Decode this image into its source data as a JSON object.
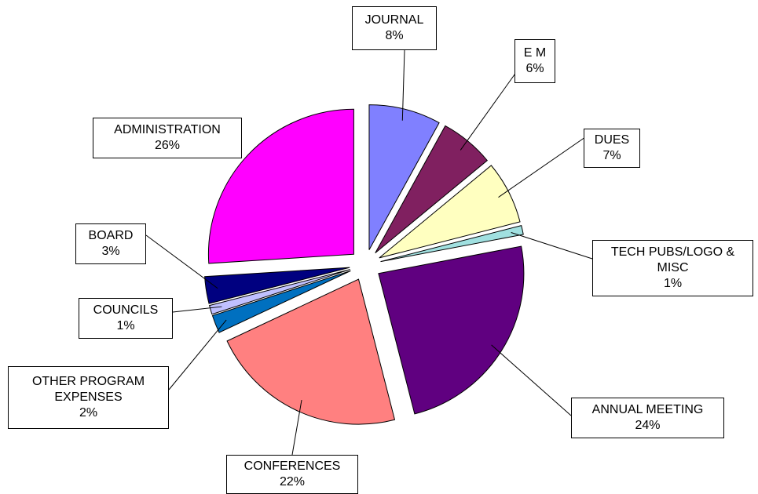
{
  "chart_data": {
    "type": "pie",
    "categories": [
      "JOURNAL",
      "E M",
      "DUES",
      "TECH PUBS/LOGO & MISC",
      "ANNUAL MEETING",
      "CONFERENCES",
      "OTHER PROGRAM EXPENSES",
      "COUNCILS",
      "BOARD",
      "ADMINISTRATION"
    ],
    "values": [
      8,
      6,
      7,
      1,
      24,
      22,
      2,
      1,
      3,
      26
    ],
    "value_labels": [
      "8%",
      "6%",
      "7%",
      "1%",
      "24%",
      "22%",
      "2%",
      "1%",
      "3%",
      "26%"
    ],
    "colors": [
      "#8080ff",
      "#802060",
      "#ffffc0",
      "#a0e0e0",
      "#600080",
      "#ff8080",
      "#0070c0",
      "#c0c0ff",
      "#000080",
      "#ff00ff"
    ]
  }
}
